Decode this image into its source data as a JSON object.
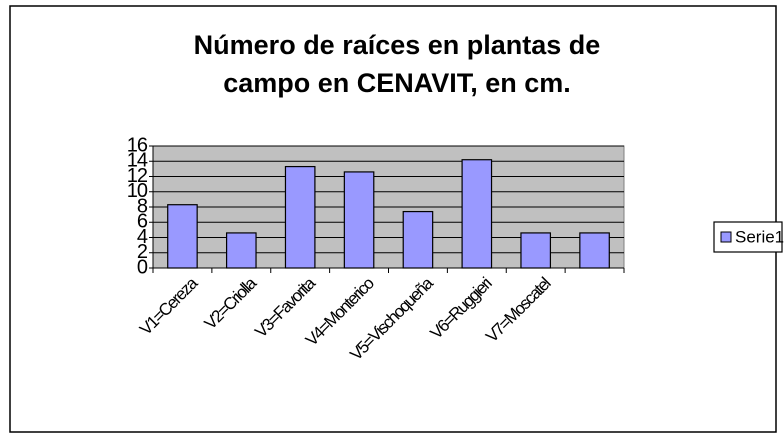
{
  "chart_data": {
    "type": "bar",
    "title": [
      "Número de raíces en plantas de",
      "campo en CENAVIT, en cm."
    ],
    "categories": [
      "V1=Cereza",
      "V2=Criolla",
      "V3=Favorita",
      "V4=Monterico",
      "V5=Vischoqueña",
      "V6=Ruggieri",
      "V7=Moscatel",
      null
    ],
    "series": [
      {
        "name": "Serie1",
        "color": "#9999ff",
        "values": [
          8.3,
          4.6,
          13.3,
          12.6,
          7.4,
          14.2,
          4.6,
          4.6
        ]
      }
    ],
    "ylim": [
      0,
      16
    ],
    "yticks": [
      0,
      2,
      4,
      6,
      8,
      10,
      12,
      14,
      16
    ],
    "grid": true,
    "plot_background": "#c0c0c0",
    "legend": "right"
  }
}
